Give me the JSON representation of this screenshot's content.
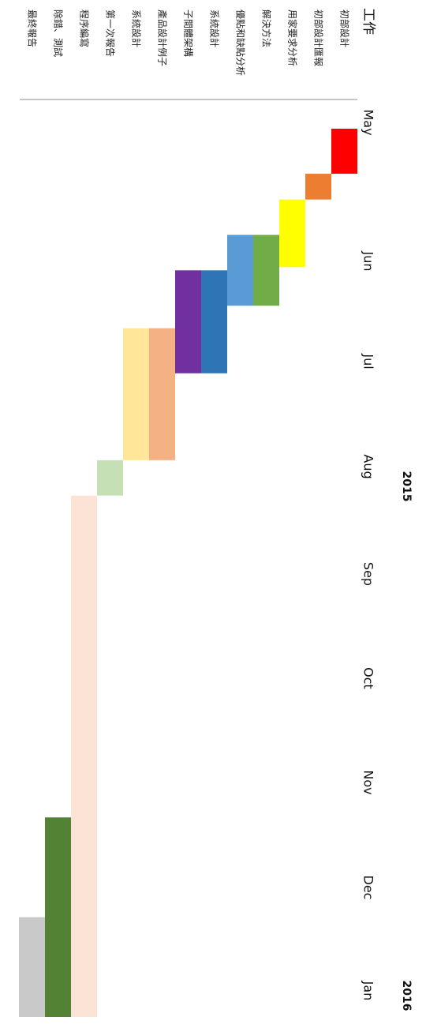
{
  "chart_data": {
    "type": "gantt",
    "orientation": "rotated-90-clockwise",
    "header": "工作",
    "years": [
      "2015",
      "2016"
    ],
    "months": [
      "May",
      "Jun",
      "Jul",
      "Aug",
      "Sep",
      "Oct",
      "Nov",
      "Dec",
      "Jan"
    ],
    "tasks": [
      {
        "name": "初部設計",
        "start": "2015-05-01",
        "end": "2015-05-14",
        "color": "#ff0000"
      },
      {
        "name": "初部設計匯報",
        "start": "2015-05-15",
        "end": "2015-05-22",
        "color": "#ed7d31"
      },
      {
        "name": "用家要求分析",
        "start": "2015-05-23",
        "end": "2015-06-12",
        "color": "#ffff00"
      },
      {
        "name": "解決方法",
        "start": "2015-06-03",
        "end": "2015-06-24",
        "color": "#70ad47"
      },
      {
        "name": "優點和缺點分析",
        "start": "2015-06-03",
        "end": "2015-06-24",
        "color": "#5b9bd5"
      },
      {
        "name": "系統設計",
        "start": "2015-06-14",
        "end": "2015-07-15",
        "color": "#2e75b6"
      },
      {
        "name": "子間體架構",
        "start": "2015-06-14",
        "end": "2015-07-15",
        "color": "#7030a0"
      },
      {
        "name": "產品設計例子",
        "start": "2015-07-02",
        "end": "2015-08-11",
        "color": "#f4b183"
      },
      {
        "name": "系統設計",
        "start": "2015-07-02",
        "end": "2015-08-11",
        "color": "#ffe699"
      },
      {
        "name": "第一次報告",
        "start": "2015-08-12",
        "end": "2015-08-22",
        "color": "#c5e0b4"
      },
      {
        "name": "程序編寫",
        "start": "2015-08-23",
        "end": "2016-01-31",
        "color": "#fbe3d6"
      },
      {
        "name": "除錯、測試",
        "start": "2015-12-01",
        "end": "2016-01-31",
        "color": "#548235"
      },
      {
        "name": "最終報告",
        "start": "2016-01-01",
        "end": "2016-01-31",
        "color": "#c9c9c9"
      }
    ]
  }
}
